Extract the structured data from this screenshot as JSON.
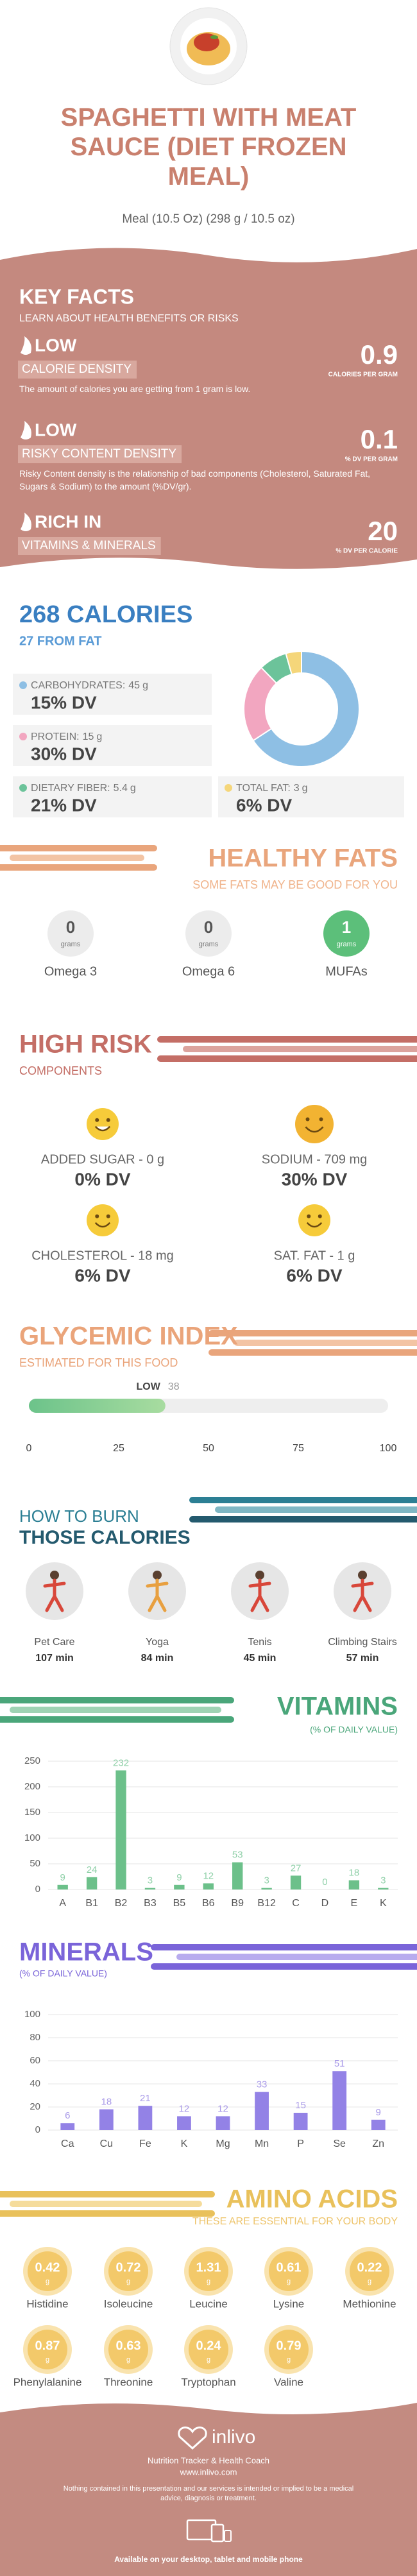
{
  "header": {
    "title": "SPAGHETTI WITH MEAT SAUCE (DIET FROZEN MEAL)",
    "subtitle": "Meal (10.5 Oz) (298 g / 10.5 oz)"
  },
  "key_facts": {
    "title": "KEY FACTS",
    "subtitle": "LEARN ABOUT HEALTH BENEFITS OR RISKS",
    "items": [
      {
        "level": "LOW",
        "name": "CALORIE DENSITY",
        "value": 0.9,
        "unit": "CALORIES PER GRAM",
        "description": "The amount of calories you are getting from 1 gram is low."
      },
      {
        "level": "LOW",
        "name": "RISKY CONTENT DENSITY",
        "value": 0.1,
        "unit": "% DV PER GRAM",
        "description": "Risky Content density is the relationship of bad components (Cholesterol, Saturated Fat, Sugars & Sodium) to the amount (%DV/gr)."
      },
      {
        "level": "RICH IN",
        "name": "VITAMINS & MINERALS",
        "value": 20,
        "unit": "% DV PER CALORIE"
      }
    ]
  },
  "calories": {
    "title": "268 CALORIES",
    "subtitle": "27 FROM FAT",
    "items": [
      {
        "name": "CARBOHYDRATES:",
        "grams": 45,
        "unit": "g",
        "dv": "15% DV",
        "color": "#8ebfe4"
      },
      {
        "name": "PROTEIN:",
        "grams": 15,
        "unit": "g",
        "dv": "30% DV",
        "color": "#f2a6c0"
      },
      {
        "name": "DIETARY FIBER:",
        "grams": 5.4,
        "unit": "g",
        "dv": "21% DV",
        "color": "#6cc39a"
      },
      {
        "name": "TOTAL FAT:",
        "grams": 3,
        "unit": "g",
        "dv": "6% DV",
        "color": "#f5d67a"
      }
    ]
  },
  "healthy_fats": {
    "title": "HEALTHY FATS",
    "subtitle": "SOME FATS MAY BE GOOD FOR YOU",
    "unit": "grams",
    "items": [
      {
        "name": "Omega 3",
        "value": 0
      },
      {
        "name": "Omega 6",
        "value": 0
      },
      {
        "name": "MUFAs",
        "value": 1
      }
    ]
  },
  "high_risk": {
    "title": "HIGH RISK",
    "subtitle": "COMPONENTS",
    "items": [
      {
        "name": "ADDED SUGAR - 0 g",
        "dv": "0% DV"
      },
      {
        "name": "SODIUM - 709 mg",
        "dv": "30% DV"
      },
      {
        "name": "CHOLESTEROL - 18 mg",
        "dv": "6% DV"
      },
      {
        "name": "SAT. FAT - 1 g",
        "dv": "6% DV"
      }
    ]
  },
  "glycemic": {
    "title": "GLYCEMIC INDEX",
    "subtitle": "ESTIMATED FOR THIS FOOD",
    "level": "LOW",
    "value": 38,
    "xlim": [
      0,
      100
    ],
    "xticks": [
      0,
      25,
      50,
      75,
      100
    ]
  },
  "burn": {
    "title": "HOW TO BURN",
    "subtitle": "THOSE CALORIES",
    "items": [
      {
        "name": "Pet Care",
        "time": "107 min"
      },
      {
        "name": "Yoga",
        "time": "84 min"
      },
      {
        "name": "Tenis",
        "time": "45 min"
      },
      {
        "name": "Climbing Stairs",
        "time": "57 min"
      }
    ]
  },
  "vitamins": {
    "type": "bar",
    "title": "VITAMINS",
    "subtitle": "(% OF DAILY VALUE)",
    "color": "#6cc08a",
    "categories": [
      "A",
      "B1",
      "B2",
      "B3",
      "B5",
      "B6",
      "B9",
      "B12",
      "C",
      "D",
      "E",
      "K"
    ],
    "values": [
      9,
      24,
      232,
      3,
      9,
      12,
      53,
      3,
      27,
      0,
      18,
      3
    ],
    "ylim": [
      0,
      250
    ],
    "yticks": [
      0,
      50,
      100,
      150,
      200,
      250
    ],
    "grid": true
  },
  "minerals": {
    "type": "bar",
    "title": "MINERALS",
    "subtitle": "(% OF DAILY VALUE)",
    "color": "#9382e6",
    "categories": [
      "Ca",
      "Cu",
      "Fe",
      "K",
      "Mg",
      "Mn",
      "P",
      "Se",
      "Zn"
    ],
    "values": [
      6,
      18,
      21,
      12,
      12,
      33,
      15,
      51,
      9
    ],
    "ylim": [
      0,
      100
    ],
    "yticks": [
      0,
      20,
      40,
      60,
      80,
      100
    ],
    "grid": true
  },
  "amino_acids": {
    "title": "AMINO ACIDS",
    "subtitle": "THESE ARE ESSENTIAL FOR YOUR BODY",
    "unit": "g",
    "items": [
      {
        "name": "Histidine",
        "value": 0.42
      },
      {
        "name": "Isoleucine",
        "value": 0.72
      },
      {
        "name": "Leucine",
        "value": 1.31
      },
      {
        "name": "Lysine",
        "value": 0.61
      },
      {
        "name": "Methionine",
        "value": 0.22
      },
      {
        "name": "Phenylalanine",
        "value": 0.87
      },
      {
        "name": "Threonine",
        "value": 0.63
      },
      {
        "name": "Tryptophan",
        "value": 0.24
      },
      {
        "name": "Valine",
        "value": 0.79
      }
    ]
  },
  "footer": {
    "brand": "inlivo",
    "tagline": "Nutrition Tracker & Health Coach",
    "url": "www.inlivo.com",
    "disclaimer": "Nothing contained in this presentation and our services is intended or implied to be a medical advice, diagnosis or treatment.",
    "availability": "Available on your desktop, tablet and mobile phone"
  }
}
